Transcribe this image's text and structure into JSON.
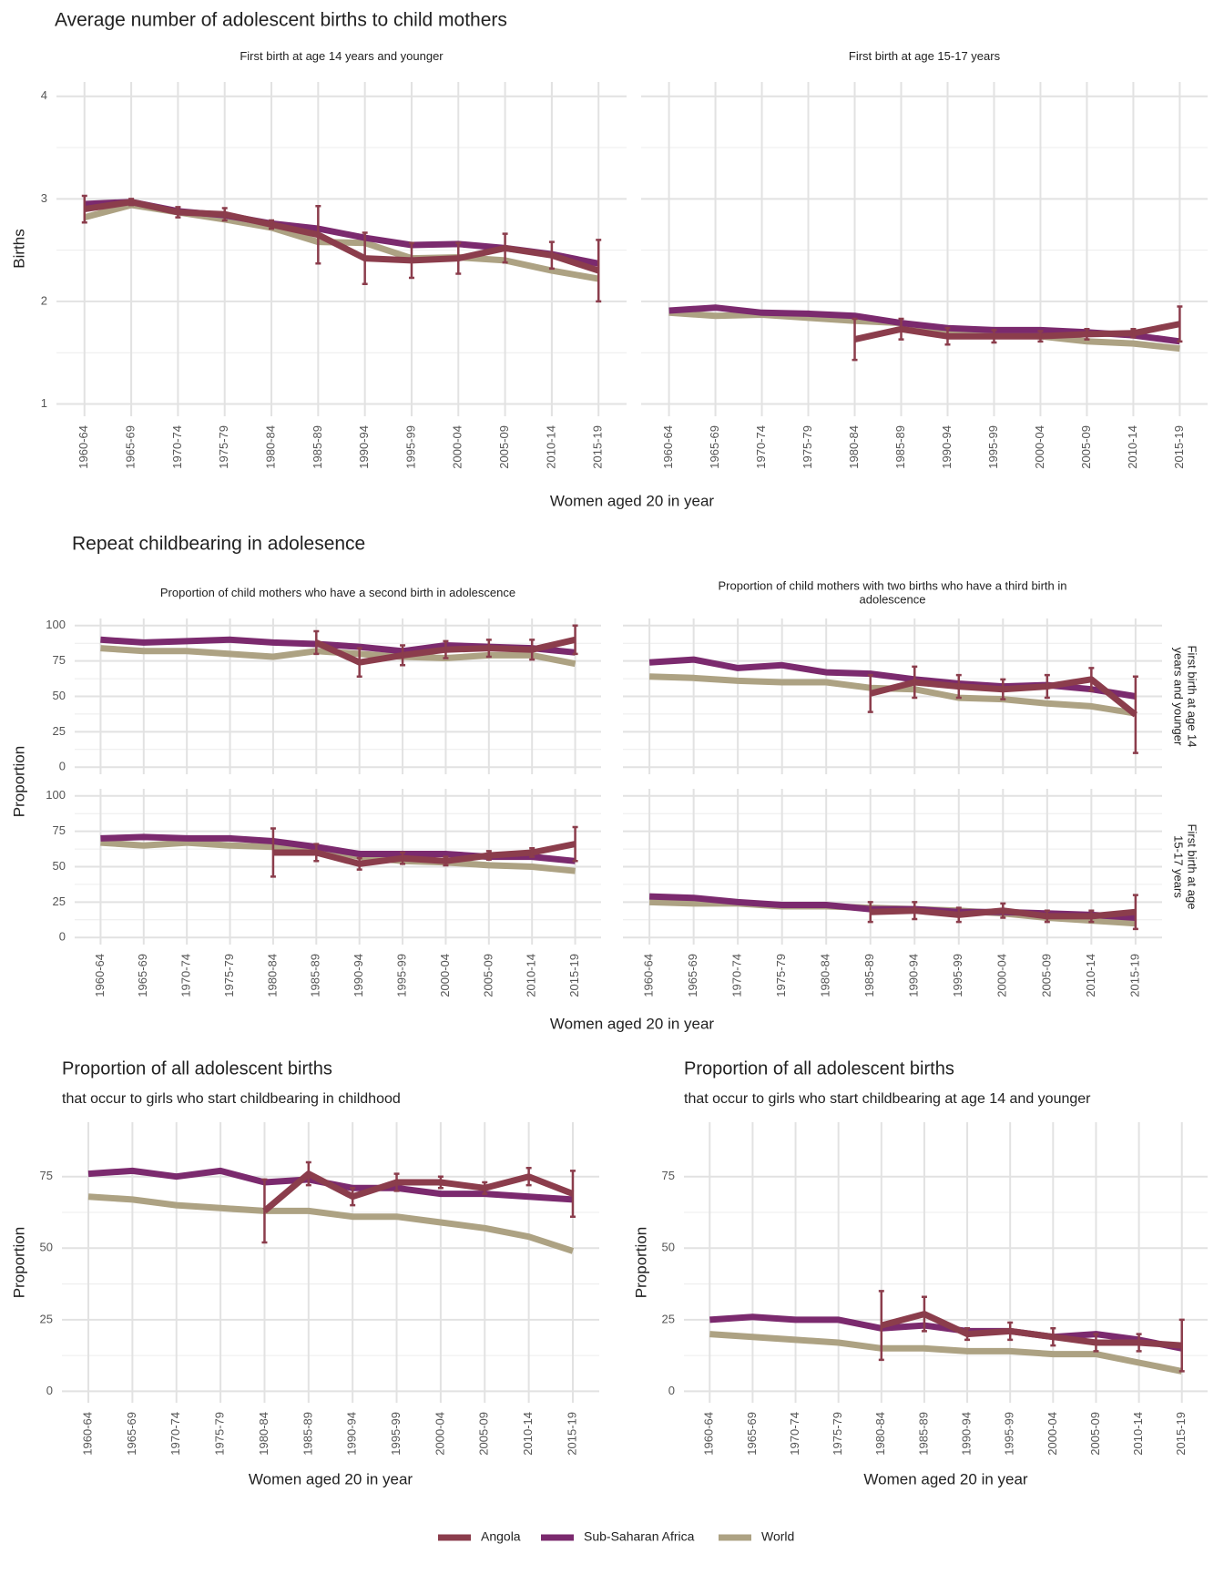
{
  "sections": [
    {
      "title": "Average number of adolescent births to child mothers",
      "xlabel": "Women aged 20 in year",
      "ylabel": "Births"
    },
    {
      "title": "Repeat childbearing in adolesence",
      "xlabel": "Women aged 20 in year",
      "ylabel": "Proportion"
    }
  ],
  "chart_data": [
    {
      "type": "line",
      "title": "First birth at age 14 years and younger",
      "categories": [
        "1960-64",
        "1965-69",
        "1970-74",
        "1975-79",
        "1980-84",
        "1985-89",
        "1990-94",
        "1995-99",
        "2000-04",
        "2005-09",
        "2010-14",
        "2015-19"
      ],
      "ylim": [
        0.88,
        4.14
      ],
      "yticks": [
        1,
        2,
        3,
        4
      ],
      "grid": true,
      "series": [
        {
          "name": "Angola",
          "color": "#8b3d4c",
          "values": [
            2.9,
            2.97,
            2.87,
            2.85,
            2.75,
            2.65,
            2.42,
            2.4,
            2.42,
            2.52,
            2.45,
            2.3
          ],
          "errors": [
            0.13,
            0.03,
            0.05,
            0.06,
            0.04,
            0.28,
            0.25,
            0.17,
            0.15,
            0.14,
            0.13,
            0.3
          ]
        },
        {
          "name": "Sub-Saharan Africa",
          "color": "#7b2a6e",
          "values": [
            2.95,
            2.97,
            2.88,
            2.84,
            2.76,
            2.71,
            2.62,
            2.55,
            2.56,
            2.52,
            2.46,
            2.37
          ]
        },
        {
          "name": "World",
          "color": "#ada283",
          "values": [
            2.82,
            2.94,
            2.87,
            2.8,
            2.72,
            2.58,
            2.57,
            2.42,
            2.43,
            2.4,
            2.3,
            2.22
          ]
        }
      ]
    },
    {
      "type": "line",
      "title": "First birth at age 15-17 years",
      "categories": [
        "1960-64",
        "1965-69",
        "1970-74",
        "1975-79",
        "1980-84",
        "1985-89",
        "1990-94",
        "1995-99",
        "2000-04",
        "2005-09",
        "2010-14",
        "2015-19"
      ],
      "ylim": [
        0.88,
        4.14
      ],
      "grid": true,
      "series": [
        {
          "name": "Angola",
          "color": "#8b3d4c",
          "values": [
            null,
            null,
            null,
            null,
            1.63,
            1.73,
            1.66,
            1.66,
            1.66,
            1.68,
            1.69,
            1.78
          ],
          "errors": [
            null,
            null,
            null,
            null,
            0.2,
            0.1,
            0.08,
            0.06,
            0.05,
            0.05,
            0.04,
            0.17
          ]
        },
        {
          "name": "Sub-Saharan Africa",
          "color": "#7b2a6e",
          "values": [
            1.91,
            1.94,
            1.89,
            1.88,
            1.86,
            1.79,
            1.74,
            1.72,
            1.72,
            1.7,
            1.67,
            1.61
          ]
        },
        {
          "name": "World",
          "color": "#ada283",
          "values": [
            1.89,
            1.86,
            1.87,
            1.84,
            1.81,
            1.79,
            1.72,
            1.69,
            1.66,
            1.61,
            1.59,
            1.54
          ]
        }
      ]
    },
    {
      "type": "line",
      "title": "Proportion of child mothers who have a second birth in adolescence",
      "ylim": [
        -5,
        105
      ],
      "yticks": [
        0,
        25,
        50,
        75,
        100
      ],
      "grid": true,
      "series": [
        {
          "name": "Angola",
          "color": "#8b3d4c",
          "values": [
            null,
            null,
            null,
            null,
            null,
            88,
            74,
            79,
            83,
            84,
            83,
            90
          ],
          "errors": [
            null,
            null,
            null,
            null,
            null,
            8,
            10,
            7,
            6,
            6,
            7,
            10
          ]
        },
        {
          "name": "Sub-Saharan Africa",
          "color": "#7b2a6e",
          "values": [
            90,
            88,
            89,
            90,
            88,
            87,
            85,
            82,
            86,
            85,
            84,
            81
          ]
        },
        {
          "name": "World",
          "color": "#ada283",
          "values": [
            84,
            82,
            82,
            80,
            78,
            82,
            80,
            78,
            77,
            79,
            79,
            73
          ]
        }
      ]
    },
    {
      "type": "line",
      "title": "Proportion of child mothers with two births who have a third birth in adolescence",
      "row_label": "First birth at age 14 years and younger",
      "ylim": [
        -5,
        105
      ],
      "grid": true,
      "series": [
        {
          "name": "Angola",
          "color": "#8b3d4c",
          "values": [
            null,
            null,
            null,
            null,
            null,
            52,
            60,
            57,
            55,
            57,
            62,
            37
          ],
          "errors": [
            null,
            null,
            null,
            null,
            null,
            13,
            11,
            8,
            7,
            8,
            8,
            27
          ]
        },
        {
          "name": "Sub-Saharan Africa",
          "color": "#7b2a6e",
          "values": [
            74,
            76,
            70,
            72,
            67,
            66,
            62,
            59,
            57,
            58,
            55,
            50
          ]
        },
        {
          "name": "World",
          "color": "#ada283",
          "values": [
            64,
            63,
            61,
            60,
            60,
            56,
            55,
            49,
            48,
            45,
            43,
            38
          ]
        }
      ]
    },
    {
      "type": "line",
      "categories": [
        "1960-64",
        "1965-69",
        "1970-74",
        "1975-79",
        "1980-84",
        "1985-89",
        "1990-94",
        "1995-99",
        "2000-04",
        "2005-09",
        "2010-14",
        "2015-19"
      ],
      "ylim": [
        -5,
        105
      ],
      "yticks": [
        0,
        25,
        50,
        75,
        100
      ],
      "grid": true,
      "series": [
        {
          "name": "Angola",
          "color": "#8b3d4c",
          "values": [
            null,
            null,
            null,
            null,
            60,
            60,
            52,
            56,
            54,
            58,
            60,
            66
          ],
          "errors": [
            null,
            null,
            null,
            null,
            17,
            6,
            4,
            4,
            3,
            3,
            3,
            12
          ]
        },
        {
          "name": "Sub-Saharan Africa",
          "color": "#7b2a6e",
          "values": [
            70,
            71,
            70,
            70,
            68,
            64,
            59,
            59,
            59,
            57,
            57,
            54
          ]
        },
        {
          "name": "World",
          "color": "#ada283",
          "values": [
            67,
            65,
            67,
            65,
            64,
            63,
            57,
            54,
            53,
            51,
            50,
            47
          ]
        }
      ]
    },
    {
      "type": "line",
      "row_label": "First birth at age 15-17 years",
      "categories": [
        "1960-64",
        "1965-69",
        "1970-74",
        "1975-79",
        "1980-84",
        "1985-89",
        "1990-94",
        "1995-99",
        "2000-04",
        "2005-09",
        "2010-14",
        "2015-19"
      ],
      "ylim": [
        -5,
        105
      ],
      "grid": true,
      "series": [
        {
          "name": "Angola",
          "color": "#8b3d4c",
          "values": [
            null,
            null,
            null,
            null,
            null,
            18,
            19,
            16,
            19,
            15,
            15,
            18
          ],
          "errors": [
            null,
            null,
            null,
            null,
            null,
            7,
            6,
            5,
            5,
            4,
            4,
            12
          ]
        },
        {
          "name": "Sub-Saharan Africa",
          "color": "#7b2a6e",
          "values": [
            29,
            28,
            25,
            23,
            23,
            20,
            20,
            18,
            18,
            17,
            16,
            14
          ]
        },
        {
          "name": "World",
          "color": "#ada283",
          "values": [
            25,
            24,
            24,
            22,
            22,
            21,
            20,
            19,
            17,
            14,
            12,
            10
          ]
        }
      ]
    },
    {
      "type": "line",
      "title": "Proportion of all adolescent births",
      "subtitle": "that occur to girls who start childbearing in childhood",
      "xlabel": "Women aged 20 in year",
      "ylabel": "Proportion",
      "categories": [
        "1960-64",
        "1965-69",
        "1970-74",
        "1975-79",
        "1980-84",
        "1985-89",
        "1990-94",
        "1995-99",
        "2000-04",
        "2005-09",
        "2010-14",
        "2015-19"
      ],
      "ylim": [
        -4,
        94
      ],
      "yticks": [
        0,
        25,
        50,
        75
      ],
      "grid": true,
      "series": [
        {
          "name": "Angola",
          "color": "#8b3d4c",
          "values": [
            null,
            null,
            null,
            null,
            63,
            76,
            68,
            73,
            73,
            71,
            75,
            69
          ],
          "errors": [
            null,
            null,
            null,
            null,
            11,
            4,
            3,
            3,
            2,
            2,
            3,
            8
          ]
        },
        {
          "name": "Sub-Saharan Africa",
          "color": "#7b2a6e",
          "values": [
            76,
            77,
            75,
            77,
            73,
            74,
            71,
            71,
            69,
            69,
            68,
            67
          ]
        },
        {
          "name": "World",
          "color": "#ada283",
          "values": [
            68,
            67,
            65,
            64,
            63,
            63,
            61,
            61,
            59,
            57,
            54,
            49
          ]
        }
      ]
    },
    {
      "type": "line",
      "title": "Proportion of all adolescent births",
      "subtitle": "that occur to girls who start childbearing at age 14 and younger",
      "xlabel": "Women aged 20 in year",
      "ylabel": "Proportion",
      "categories": [
        "1960-64",
        "1965-69",
        "1970-74",
        "1975-79",
        "1980-84",
        "1985-89",
        "1990-94",
        "1995-99",
        "2000-04",
        "2005-09",
        "2010-14",
        "2015-19"
      ],
      "ylim": [
        -4,
        94
      ],
      "yticks": [
        0,
        25,
        50,
        75
      ],
      "grid": true,
      "series": [
        {
          "name": "Angola",
          "color": "#8b3d4c",
          "values": [
            null,
            null,
            null,
            null,
            23,
            27,
            20,
            21,
            19,
            17,
            17,
            16
          ],
          "errors": [
            null,
            null,
            null,
            null,
            12,
            6,
            2,
            3,
            3,
            3,
            3,
            9
          ]
        },
        {
          "name": "Sub-Saharan Africa",
          "color": "#7b2a6e",
          "values": [
            25,
            26,
            25,
            25,
            22,
            23,
            21,
            21,
            19,
            20,
            18,
            15
          ]
        },
        {
          "name": "World",
          "color": "#ada283",
          "values": [
            20,
            19,
            18,
            17,
            15,
            15,
            14,
            14,
            13,
            13,
            10,
            7
          ]
        }
      ]
    }
  ]
}
